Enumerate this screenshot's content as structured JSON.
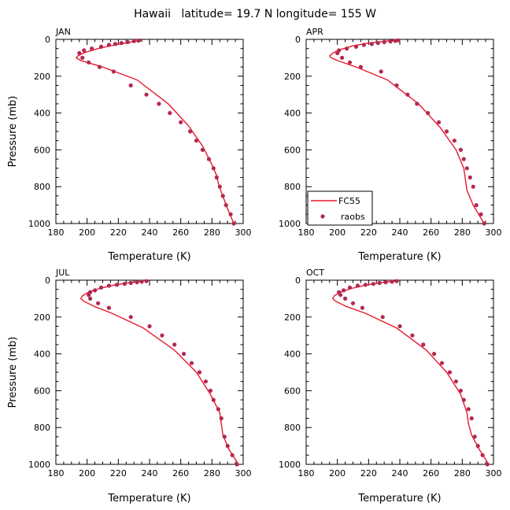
{
  "title": "Hawaii   latitude= 19.7 N longitude= 155 W",
  "colors": {
    "model": "#e8192c",
    "obs": "#b5284f",
    "axis": "#000000"
  },
  "chart_data": [
    {
      "type": "line",
      "panel": "JAN",
      "xlabel": "Temperature (K)",
      "ylabel": "Pressure (mb)",
      "xlim": [
        180,
        300
      ],
      "ylim": [
        1000,
        0
      ],
      "xticks": [
        "180",
        "200",
        "220",
        "240",
        "260",
        "280",
        "300"
      ],
      "yticks": [
        "0",
        "200",
        "400",
        "600",
        "800",
        "1000"
      ],
      "series": [
        {
          "name": "FC55",
          "style": "line",
          "x": [
            235,
            228,
            218,
            207,
            199,
            194,
            193,
            196,
            210,
            232,
            252,
            265,
            274,
            280,
            283,
            284,
            286,
            290,
            294
          ],
          "y": [
            5,
            15,
            30,
            50,
            70,
            90,
            100,
            115,
            150,
            220,
            350,
            470,
            580,
            680,
            740,
            780,
            830,
            920,
            1000
          ]
        },
        {
          "name": "raobs",
          "style": "markers",
          "x": [
            233,
            230,
            226,
            222,
            218,
            214,
            209,
            203,
            198,
            195,
            197,
            201,
            208,
            217,
            228,
            238,
            246,
            253,
            260,
            266,
            270,
            274,
            278,
            281,
            283,
            285,
            287,
            289,
            292,
            294
          ],
          "y": [
            7,
            10,
            15,
            20,
            25,
            30,
            40,
            50,
            60,
            75,
            100,
            125,
            150,
            175,
            250,
            300,
            350,
            400,
            450,
            500,
            550,
            600,
            650,
            700,
            750,
            800,
            850,
            900,
            950,
            1000
          ]
        }
      ]
    },
    {
      "type": "line",
      "panel": "APR",
      "xlabel": "Temperature (K)",
      "ylabel": "",
      "xlim": [
        180,
        300
      ],
      "ylim": [
        1000,
        0
      ],
      "xticks": [
        "180",
        "200",
        "220",
        "240",
        "260",
        "280",
        "300"
      ],
      "yticks": [
        "0",
        "200",
        "400",
        "600",
        "800",
        "1000"
      ],
      "legend": {
        "position": "lower-left",
        "entries": [
          "FC55",
          "raobs"
        ]
      },
      "series": [
        {
          "name": "FC55",
          "style": "line",
          "x": [
            238,
            230,
            220,
            210,
            202,
            197,
            195,
            196,
            200,
            212,
            232,
            252,
            266,
            276,
            281,
            282,
            283,
            287,
            294
          ],
          "y": [
            5,
            10,
            20,
            35,
            55,
            75,
            90,
            100,
            115,
            150,
            220,
            350,
            480,
            600,
            700,
            760,
            820,
            900,
            1000
          ]
        },
        {
          "name": "raobs",
          "style": "markers",
          "x": [
            239,
            237,
            234,
            230,
            226,
            222,
            217,
            212,
            206,
            201,
            200,
            203,
            208,
            215,
            228,
            238,
            245,
            251,
            258,
            265,
            270,
            275,
            279,
            281,
            283,
            285,
            287,
            289,
            292,
            294
          ],
          "y": [
            5,
            8,
            11,
            15,
            20,
            25,
            30,
            40,
            50,
            60,
            75,
            100,
            125,
            150,
            175,
            250,
            300,
            350,
            400,
            450,
            500,
            550,
            600,
            650,
            700,
            750,
            800,
            900,
            950,
            1000
          ]
        }
      ]
    },
    {
      "type": "line",
      "panel": "JUL",
      "xlabel": "Temperature (K)",
      "ylabel": "Pressure (mb)",
      "xlim": [
        180,
        300
      ],
      "ylim": [
        1000,
        0
      ],
      "xticks": [
        "180",
        "200",
        "220",
        "240",
        "260",
        "280",
        "300"
      ],
      "yticks": [
        "0",
        "200",
        "400",
        "600",
        "800",
        "1000"
      ],
      "series": [
        {
          "name": "FC55",
          "style": "line",
          "x": [
            236,
            228,
            218,
            208,
            201,
            197,
            196,
            198,
            204,
            216,
            236,
            256,
            270,
            279,
            285,
            286,
            287,
            291,
            297
          ],
          "y": [
            5,
            12,
            25,
            45,
            65,
            85,
            100,
            115,
            140,
            180,
            260,
            380,
            500,
            620,
            720,
            780,
            840,
            920,
            1000
          ]
        },
        {
          "name": "raobs",
          "style": "markers",
          "x": [
            238,
            235,
            232,
            228,
            224,
            219,
            214,
            209,
            205,
            202,
            201,
            202,
            207,
            214,
            228,
            240,
            248,
            256,
            262,
            267,
            272,
            276,
            279,
            281,
            284,
            286,
            288,
            290,
            293,
            296
          ],
          "y": [
            5,
            8,
            11,
            15,
            20,
            25,
            30,
            40,
            55,
            65,
            80,
            100,
            125,
            150,
            200,
            250,
            300,
            350,
            400,
            450,
            500,
            550,
            600,
            650,
            700,
            750,
            850,
            900,
            950,
            1000
          ]
        }
      ]
    },
    {
      "type": "line",
      "panel": "OCT",
      "xlabel": "Temperature (K)",
      "ylabel": "",
      "xlim": [
        180,
        300
      ],
      "ylim": [
        1000,
        0
      ],
      "xticks": [
        "180",
        "200",
        "220",
        "240",
        "260",
        "280",
        "300"
      ],
      "yticks": [
        "0",
        "200",
        "400",
        "600",
        "800",
        "1000"
      ],
      "series": [
        {
          "name": "FC55",
          "style": "line",
          "x": [
            237,
            229,
            219,
            209,
            202,
            198,
            197,
            199,
            205,
            218,
            238,
            257,
            270,
            279,
            283,
            284,
            286,
            291,
            297
          ],
          "y": [
            5,
            12,
            25,
            45,
            65,
            85,
            100,
            115,
            140,
            180,
            260,
            380,
            500,
            620,
            720,
            780,
            840,
            920,
            1000
          ]
        },
        {
          "name": "raobs",
          "style": "markers",
          "x": [
            238,
            235,
            231,
            227,
            223,
            218,
            213,
            208,
            204,
            201,
            202,
            205,
            210,
            216,
            229,
            240,
            248,
            255,
            262,
            267,
            272,
            276,
            279,
            281,
            284,
            286,
            288,
            290,
            293,
            296
          ],
          "y": [
            5,
            8,
            11,
            15,
            20,
            25,
            30,
            40,
            55,
            65,
            80,
            100,
            125,
            150,
            200,
            250,
            300,
            350,
            400,
            450,
            500,
            550,
            600,
            650,
            700,
            750,
            850,
            900,
            950,
            1000
          ]
        }
      ]
    }
  ]
}
